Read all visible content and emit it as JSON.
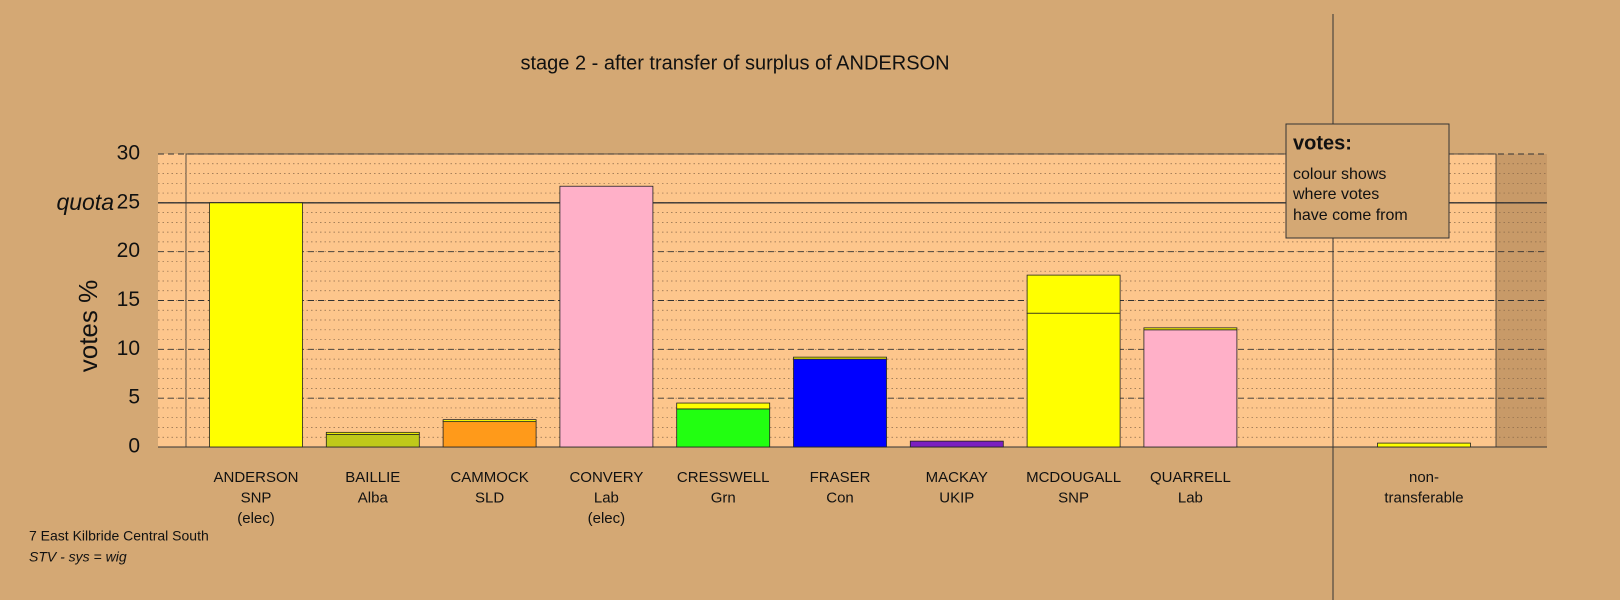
{
  "chart_data": {
    "type": "stacked-bar",
    "title": "stage 2 - after transfer of surplus of ANDERSON",
    "y_label": "votes %",
    "categories": [
      [
        "ANDERSON",
        "SNP",
        "(elec)"
      ],
      [
        "BAILLIE",
        "Alba"
      ],
      [
        "CAMMOCK",
        "SLD"
      ],
      [
        "CONVERY",
        "Lab",
        "(elec)"
      ],
      [
        "CRESSWELL",
        "Grn"
      ],
      [
        "FRASER",
        "Con"
      ],
      [
        "MACKAY",
        "UKIP"
      ],
      [
        "MCDOUGALL",
        "SNP"
      ],
      [
        "QUARRELL",
        "Lab"
      ],
      null,
      [
        "non-",
        "transferable"
      ]
    ],
    "bars": [
      {
        "segments": [
          {
            "value": 25,
            "color": "#ffff00"
          }
        ]
      },
      {
        "segments": [
          {
            "value": 1.3,
            "color": "#bfc91a"
          },
          {
            "value": 0.2,
            "color": "#ffff00"
          }
        ]
      },
      {
        "segments": [
          {
            "value": 2.6,
            "color": "#ff9a1a"
          },
          {
            "value": 0.2,
            "color": "#ffff00"
          }
        ]
      },
      {
        "segments": [
          {
            "value": 26.7,
            "color": "#ffb0c8"
          }
        ]
      },
      {
        "segments": [
          {
            "value": 3.9,
            "color": "#22ff11"
          },
          {
            "value": 0.6,
            "color": "#ffff00"
          }
        ]
      },
      {
        "segments": [
          {
            "value": 9.0,
            "color": "#0000ff"
          },
          {
            "value": 0.2,
            "color": "#ffff00"
          }
        ]
      },
      {
        "segments": [
          {
            "value": 0.6,
            "color": "#7b1fc0"
          }
        ]
      },
      {
        "segments": [
          {
            "value": 13.7,
            "color": "#ffff00"
          },
          {
            "value": 3.9,
            "color": "#ffff00"
          }
        ]
      },
      {
        "segments": [
          {
            "value": 12.0,
            "color": "#ffb0c8"
          },
          {
            "value": 0.2,
            "color": "#ffff00"
          }
        ]
      },
      null,
      {
        "segments": [
          {
            "value": 0.4,
            "color": "#ffff00"
          }
        ]
      }
    ],
    "ylim": [
      0,
      30
    ],
    "yticks": [
      0,
      5,
      10,
      15,
      20,
      25,
      30
    ],
    "grid": true,
    "minor_grid": 1,
    "quota": {
      "value": 25,
      "label": "quota"
    },
    "legend": {
      "title": "votes:",
      "lines": [
        "colour shows",
        "where votes",
        "have come from"
      ]
    },
    "footnotes": [
      "7 East Kilbride Central South",
      "STV - sys = wig"
    ]
  }
}
